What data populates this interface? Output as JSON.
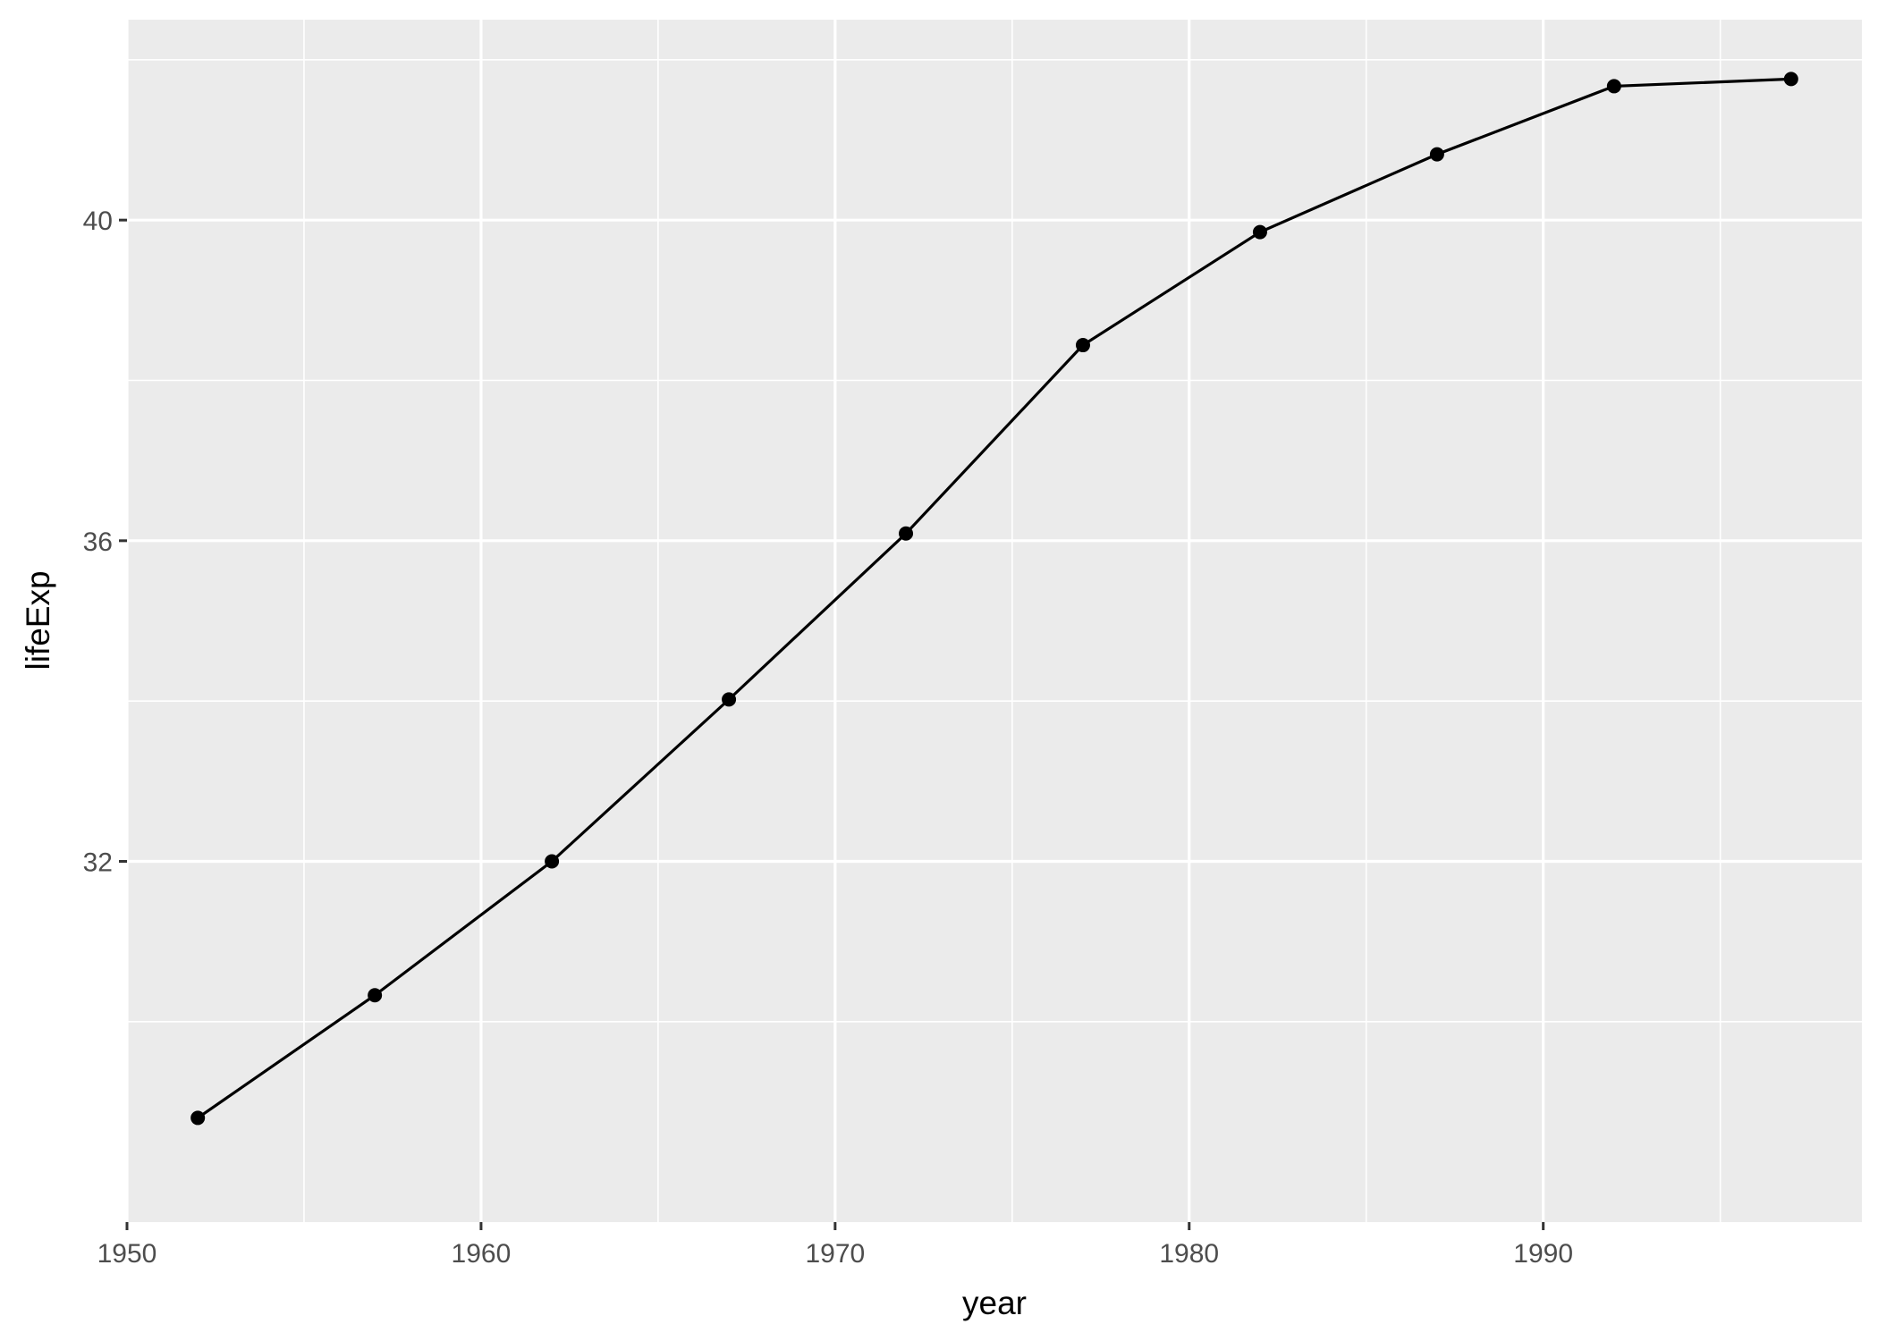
{
  "chart_data": {
    "type": "line",
    "title": "",
    "xlabel": "year",
    "ylabel": "lifeExp",
    "x": [
      1952,
      1957,
      1962,
      1967,
      1972,
      1977,
      1982,
      1987,
      1992,
      1997
    ],
    "series": [
      {
        "values": [
          28.8,
          30.33,
          32.0,
          34.02,
          36.09,
          38.44,
          39.85,
          40.82,
          41.67,
          41.76
        ]
      }
    ],
    "xlim": [
      1950,
      1999
    ],
    "ylim": [
      27.5,
      42.5
    ],
    "xticks": [
      1950,
      1960,
      1970,
      1980,
      1990
    ],
    "xtick_labels": [
      "1950",
      "1960",
      "1970",
      "1980",
      "1990"
    ],
    "yticks": [
      32,
      36,
      40
    ],
    "ytick_labels": [
      "32",
      "36",
      "40"
    ],
    "grid": true,
    "legend": "none",
    "colors": {
      "panel_background": "#ebebeb",
      "grid": "#ffffff",
      "line": "#000000",
      "point": "#000000",
      "tick_text": "#4d4d4d",
      "axis_title": "#000000"
    }
  }
}
